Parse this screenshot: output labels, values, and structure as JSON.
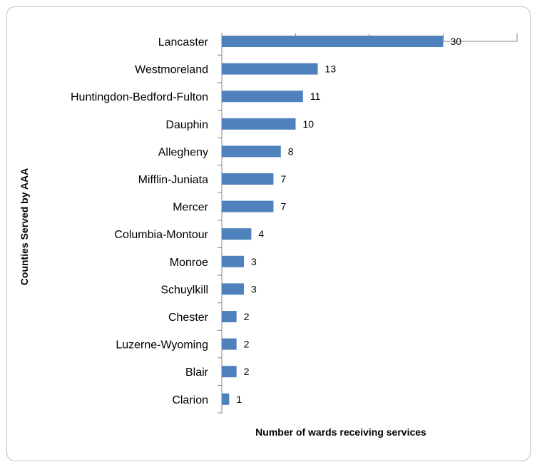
{
  "chart_data": {
    "type": "bar",
    "orientation": "horizontal",
    "categories": [
      "Lancaster",
      "Westmoreland",
      "Huntingdon-Bedford-Fulton",
      "Dauphin",
      "Allegheny",
      "Mifflin-Juniata",
      "Mercer",
      "Columbia-Montour",
      "Monroe",
      "Schuylkill",
      "Chester",
      "Luzerne-Wyoming",
      "Blair",
      "Clarion"
    ],
    "values": [
      30,
      13,
      11,
      10,
      8,
      7,
      7,
      4,
      3,
      3,
      2,
      2,
      2,
      1
    ],
    "title": "",
    "xlabel": "Number  of wards receiving services",
    "ylabel": "Counties  Served by AAA",
    "xlim": [
      0,
      40
    ],
    "x_major_step": 10,
    "data_labels": true,
    "grid": false,
    "legend": "none",
    "bar_color": "#4f81bd"
  }
}
